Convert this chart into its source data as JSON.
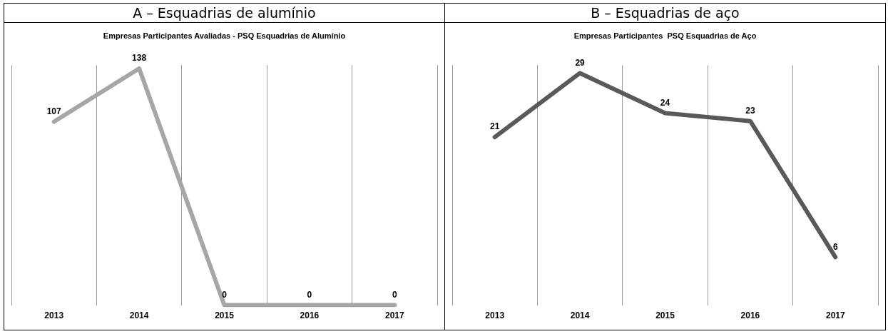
{
  "chart_data": [
    {
      "type": "line",
      "title": "A – Esquadrias de alumínio",
      "subtitle": "Empresas Participantes Avaliadas - PSQ Esquadrias de Alumínio",
      "categories": [
        "2013",
        "2014",
        "2015",
        "2016",
        "2017"
      ],
      "series": [
        {
          "color": "#a6a6a6",
          "values": [
            107,
            138,
            0,
            0,
            0
          ]
        }
      ],
      "data_labels": true,
      "grid": "x"
    },
    {
      "type": "line",
      "title": "B – Esquadrias de aço",
      "subtitle": "Empresas Participantes  PSQ Esquadrias de Aço",
      "categories": [
        "2013",
        "2014",
        "2015",
        "2016",
        "2017"
      ],
      "series": [
        {
          "color": "#595959",
          "values": [
            21,
            29,
            24,
            23,
            6
          ]
        }
      ],
      "data_labels": true,
      "grid": "x"
    }
  ]
}
